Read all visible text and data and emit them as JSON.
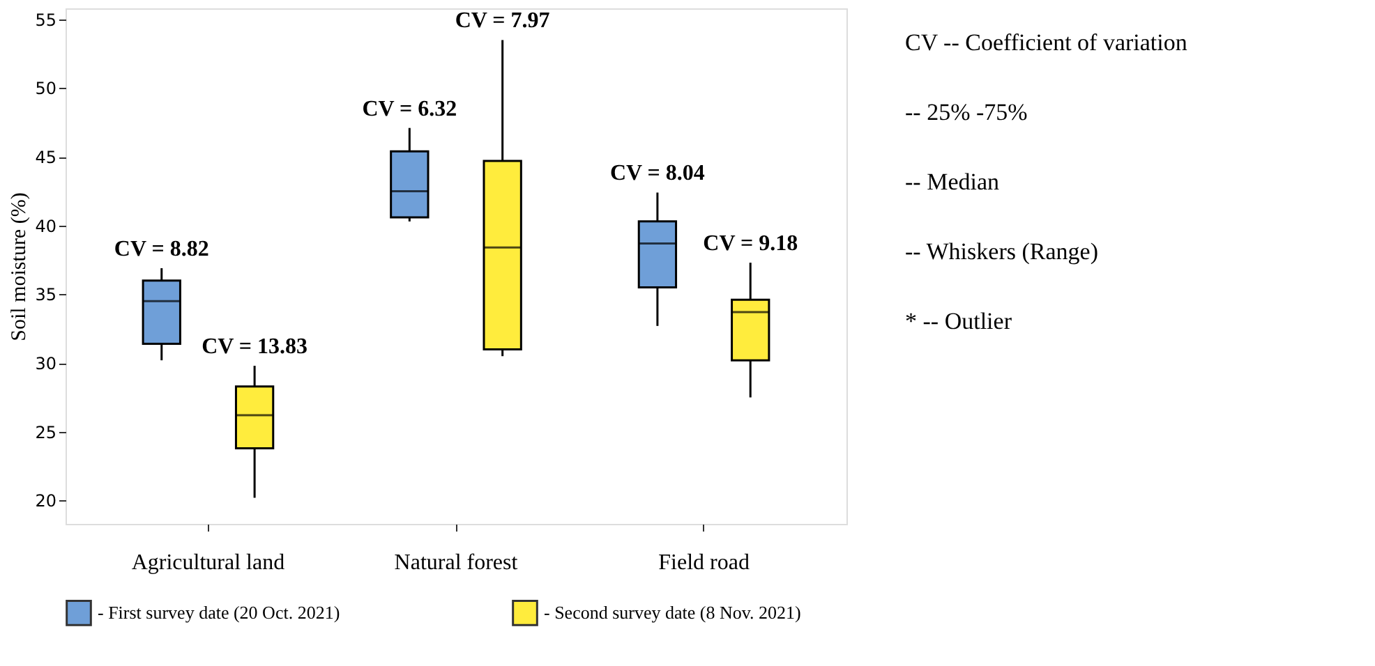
{
  "chart_data": {
    "type": "box",
    "ylabel": "Soil moisture (%)",
    "categories": [
      "Agricultural land",
      "Natural forest",
      "Field road"
    ],
    "series": [
      {
        "name": "- First survey date (20 Oct. 2021)",
        "color": "#6f9fd8",
        "boxes": [
          {
            "low": 30.2,
            "q1": 31.4,
            "median": 34.5,
            "q3": 36.0,
            "high": 36.9
          },
          {
            "low": 40.3,
            "q1": 40.6,
            "median": 42.5,
            "q3": 45.4,
            "high": 47.1
          },
          {
            "low": 32.7,
            "q1": 35.5,
            "median": 38.7,
            "q3": 40.3,
            "high": 42.4
          }
        ]
      },
      {
        "name": "- Second survey date (8 Nov. 2021)",
        "color": "#ffec3d",
        "boxes": [
          {
            "low": 20.2,
            "q1": 23.8,
            "median": 26.2,
            "q3": 28.3,
            "high": 29.8
          },
          {
            "low": 30.5,
            "q1": 31.0,
            "median": 38.4,
            "q3": 44.7,
            "high": 53.5
          },
          {
            "low": 27.5,
            "q1": 30.2,
            "median": 33.7,
            "q3": 34.6,
            "high": 37.3
          }
        ]
      }
    ],
    "ylim": [
      18.3,
      55.8
    ],
    "yticks": [
      20,
      25,
      30,
      35,
      40,
      45,
      50,
      55
    ],
    "grid": false,
    "legend": "bottom",
    "annotations": [
      "CV = 8.82",
      "CV = 13.83",
      "CV = 6.32",
      "CV = 7.97",
      "CV = 8.04",
      "CV = 9.18",
      "CV -- Coefficient of variation",
      "-- 25% -75%",
      "-- Median",
      "-- Whiskers (Range)",
      "* -- Outlier"
    ]
  }
}
